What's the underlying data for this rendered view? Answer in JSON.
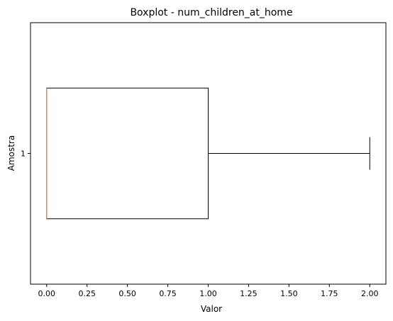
{
  "chart_data": {
    "type": "boxplot",
    "title": "Boxplot - num_children_at_home",
    "xlabel": "Valor",
    "ylabel": "Amostra",
    "orientation": "horizontal",
    "categories": [
      "1"
    ],
    "boxes": [
      {
        "label": "1",
        "whislo": 0.0,
        "q1": 0.0,
        "med": 0.0,
        "q3": 1.0,
        "whishi": 2.0
      }
    ],
    "xlim": [
      -0.1,
      2.1
    ],
    "ylim": [
      0.5,
      1.5
    ],
    "xticks": [
      0.0,
      0.25,
      0.5,
      0.75,
      1.0,
      1.25,
      1.5,
      1.75,
      2.0
    ],
    "xtick_labels": [
      "0.00",
      "0.25",
      "0.50",
      "0.75",
      "1.00",
      "1.25",
      "1.50",
      "1.75",
      "2.00"
    ],
    "colors": {
      "box": "#000000",
      "median": "#e08c4d"
    }
  }
}
